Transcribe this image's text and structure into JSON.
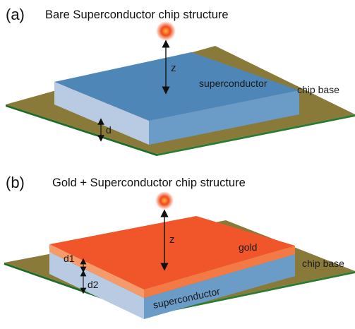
{
  "panel_a": {
    "label": "(a)",
    "title": "Bare Superconductor chip structure",
    "height_label": "z",
    "layer_label": "superconductor",
    "base_label": "chip base",
    "thickness_label": "d"
  },
  "panel_b": {
    "label": "(b)",
    "title": "Gold + Superconductor chip structure",
    "height_label": "z",
    "gold_label": "gold",
    "layer_label": "superconductor",
    "base_label": "chip base",
    "gold_thickness_label": "d1",
    "sc_thickness_label": "d2"
  },
  "colors": {
    "chip_base": "#8a7a3a",
    "chip_base_edge": "#1f6b2a",
    "superconductor_top": "#4f86b8",
    "superconductor_front": "#b9cbe3",
    "superconductor_side": "#6b9cc8",
    "gold_top": "#f0562a",
    "gold_edge": "#f59a6a",
    "particle": "#f04a1a"
  }
}
